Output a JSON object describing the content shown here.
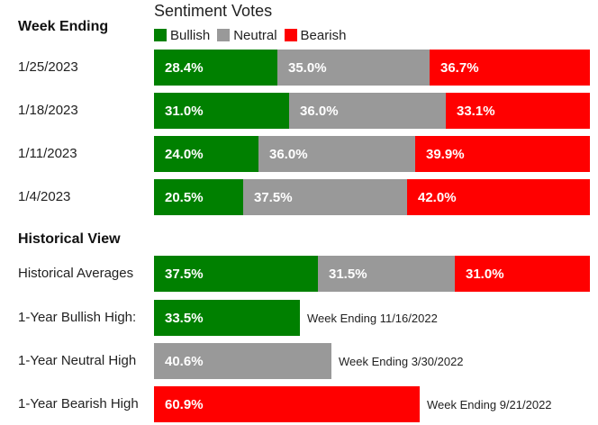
{
  "colors": {
    "bullish": "#008000",
    "neutral": "#999999",
    "bearish": "#ff0000"
  },
  "chart_data": [
    {
      "type": "bar",
      "orientation": "horizontal",
      "stacked": true,
      "title": "Sentiment Votes",
      "category_header": "Week Ending",
      "legend": [
        "Bullish",
        "Neutral",
        "Bearish"
      ],
      "legend_placement": "top",
      "categories": [
        "1/25/2023",
        "1/18/2023",
        "1/11/2023",
        "1/4/2023"
      ],
      "series": [
        {
          "name": "Bullish",
          "values": [
            28.4,
            31.0,
            24.0,
            20.5
          ],
          "labels": [
            "28.4%",
            "31.0%",
            "24.0%",
            "20.5%"
          ]
        },
        {
          "name": "Neutral",
          "values": [
            35.0,
            36.0,
            36.0,
            37.5
          ],
          "labels": [
            "35.0%",
            "36.0%",
            "36.0%",
            "37.5%"
          ]
        },
        {
          "name": "Bearish",
          "values": [
            36.7,
            33.1,
            39.9,
            42.0
          ],
          "labels": [
            "36.7%",
            "33.1%",
            "39.9%",
            "42.0%"
          ]
        }
      ]
    },
    {
      "type": "bar",
      "orientation": "horizontal",
      "title": "Historical View",
      "averages": {
        "label": "Historical Averages",
        "values": [
          37.5,
          31.5,
          31.0
        ],
        "labels": [
          "37.5%",
          "31.5%",
          "31.0%"
        ]
      },
      "highs": [
        {
          "label": "1-Year Bullish High:",
          "series": "bullish",
          "value": 33.5,
          "value_label": "33.5%",
          "note": "Week Ending 11/16/2022"
        },
        {
          "label": "1-Year Neutral High",
          "series": "neutral",
          "value": 40.6,
          "value_label": "40.6%",
          "note": "Week Ending 3/30/2022"
        },
        {
          "label": "1-Year Bearish High",
          "series": "bearish",
          "value": 60.9,
          "value_label": "60.9%",
          "note": "Week Ending 9/21/2022"
        }
      ]
    }
  ]
}
